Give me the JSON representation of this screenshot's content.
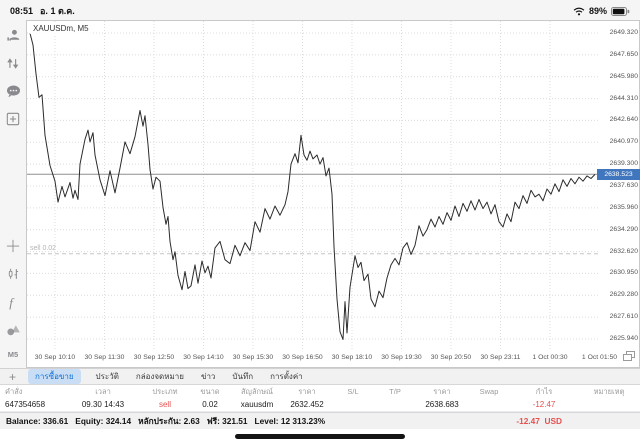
{
  "status_bar": {
    "time": "08:51",
    "date": "อ. 1 ต.ค.",
    "battery_percent": "89%"
  },
  "sidebar": {
    "icons": [
      "accounts-icon",
      "trade-icon",
      "chat-icon",
      "new-chart-icon",
      "crosshair-icon",
      "chart-type-icon",
      "indicators-icon",
      "objects-icon"
    ],
    "timeframe_label": "M5"
  },
  "chart_data": {
    "type": "line",
    "title": "XAUUSDm, M5",
    "symbol": "XAUUSDm",
    "timeframe": "M5",
    "x_ticks": [
      "30 Sep 10:10",
      "30 Sep 11:30",
      "30 Sep 12:50",
      "30 Sep 14:10",
      "30 Sep 15:30",
      "30 Sep 16:50",
      "30 Sep 18:10",
      "30 Sep 19:30",
      "30 Sep 20:50",
      "30 Sep 23:11",
      "1 Oct 00:30",
      "1 Oct 01:50"
    ],
    "y_ticks": [
      "2649.320",
      "2647.650",
      "2645.980",
      "2644.310",
      "2642.640",
      "2640.970",
      "2639.300",
      "2637.630",
      "2635.960",
      "2634.290",
      "2632.620",
      "2630.950",
      "2629.280",
      "2627.610",
      "2625.940"
    ],
    "y_axis": {
      "top_price": 2649.32,
      "bottom_price": 2625.94,
      "tick_step": 1.67
    },
    "grid": true,
    "current_price": "2638.523",
    "position_line": {
      "label": "sell 0.02",
      "price": 2632.452
    },
    "x_note": "x = px from plot left edge; gridline spacing 49.5px = 80 min; x=28 is 30 Sep 10:10",
    "series": [
      {
        "name": "XAUUSDm M5",
        "points": [
          [
            3,
            2649.3
          ],
          [
            6,
            2648.4
          ],
          [
            9,
            2646.2
          ],
          [
            12,
            2644.4
          ],
          [
            15,
            2644.6
          ],
          [
            18,
            2641.5
          ],
          [
            23,
            2639.2
          ],
          [
            28,
            2638.0
          ],
          [
            31,
            2636.4
          ],
          [
            35,
            2637.6
          ],
          [
            38,
            2636.8
          ],
          [
            43,
            2637.9
          ],
          [
            46,
            2636.7
          ],
          [
            48,
            2637.3
          ],
          [
            51,
            2636.6
          ],
          [
            53,
            2639.3
          ],
          [
            58,
            2641.2
          ],
          [
            61,
            2641.9
          ],
          [
            63,
            2641.0
          ],
          [
            66,
            2641.7
          ],
          [
            68,
            2640.0
          ],
          [
            73,
            2638.1
          ],
          [
            78,
            2636.9
          ],
          [
            83,
            2638.8
          ],
          [
            88,
            2637.1
          ],
          [
            93,
            2639.0
          ],
          [
            98,
            2641.0
          ],
          [
            103,
            2640.1
          ],
          [
            108,
            2641.4
          ],
          [
            113,
            2643.4
          ],
          [
            116,
            2642.2
          ],
          [
            118,
            2643.0
          ],
          [
            121,
            2640.8
          ],
          [
            123,
            2638.9
          ],
          [
            126,
            2637.4
          ],
          [
            129,
            2638.3
          ],
          [
            133,
            2638.0
          ],
          [
            136,
            2636.0
          ],
          [
            139,
            2634.7
          ],
          [
            141,
            2635.3
          ],
          [
            143,
            2633.4
          ],
          [
            146,
            2632.0
          ],
          [
            148,
            2632.6
          ],
          [
            151,
            2630.8
          ],
          [
            155,
            2629.7
          ],
          [
            158,
            2631.1
          ],
          [
            161,
            2629.8
          ],
          [
            164,
            2630.0
          ],
          [
            168,
            2631.6
          ],
          [
            171,
            2630.2
          ],
          [
            175,
            2631.9
          ],
          [
            178,
            2631.0
          ],
          [
            181,
            2631.5
          ],
          [
            184,
            2630.6
          ],
          [
            188,
            2632.9
          ],
          [
            193,
            2633.4
          ],
          [
            198,
            2632.0
          ],
          [
            203,
            2631.7
          ],
          [
            208,
            2633.1
          ],
          [
            213,
            2632.3
          ],
          [
            218,
            2633.3
          ],
          [
            223,
            2632.7
          ],
          [
            228,
            2634.9
          ],
          [
            233,
            2634.1
          ],
          [
            238,
            2635.9
          ],
          [
            243,
            2635.1
          ],
          [
            248,
            2636.1
          ],
          [
            253,
            2635.4
          ],
          [
            258,
            2636.2
          ],
          [
            261,
            2637.2
          ],
          [
            264,
            2639.3
          ],
          [
            268,
            2640.1
          ],
          [
            271,
            2639.4
          ],
          [
            274,
            2641.5
          ],
          [
            277,
            2640.0
          ],
          [
            280,
            2639.6
          ],
          [
            283,
            2640.3
          ],
          [
            286,
            2639.7
          ],
          [
            290,
            2640.0
          ],
          [
            293,
            2639.3
          ],
          [
            296,
            2639.8
          ],
          [
            299,
            2638.4
          ],
          [
            302,
            2639.0
          ],
          [
            305,
            2637.0
          ],
          [
            307,
            2633.0
          ],
          [
            310,
            2629.0
          ],
          [
            313,
            2626.5
          ],
          [
            316,
            2625.9
          ],
          [
            318,
            2628.8
          ],
          [
            320,
            2626.4
          ],
          [
            323,
            2629.9
          ],
          [
            328,
            2632.3
          ],
          [
            331,
            2631.4
          ],
          [
            334,
            2631.8
          ],
          [
            337,
            2630.4
          ],
          [
            341,
            2630.9
          ],
          [
            344,
            2629.0
          ],
          [
            348,
            2628.4
          ],
          [
            352,
            2629.6
          ],
          [
            356,
            2629.1
          ],
          [
            360,
            2630.6
          ],
          [
            364,
            2631.6
          ],
          [
            368,
            2632.1
          ],
          [
            372,
            2631.6
          ],
          [
            376,
            2632.9
          ],
          [
            380,
            2633.3
          ],
          [
            384,
            2632.4
          ],
          [
            388,
            2633.1
          ],
          [
            392,
            2634.6
          ],
          [
            396,
            2633.8
          ],
          [
            400,
            2634.3
          ],
          [
            404,
            2635.1
          ],
          [
            408,
            2634.5
          ],
          [
            412,
            2635.3
          ],
          [
            416,
            2634.7
          ],
          [
            420,
            2635.6
          ],
          [
            424,
            2635.0
          ],
          [
            428,
            2636.1
          ],
          [
            432,
            2635.3
          ],
          [
            436,
            2636.3
          ],
          [
            440,
            2635.7
          ],
          [
            444,
            2636.5
          ],
          [
            448,
            2635.8
          ],
          [
            452,
            2636.6
          ],
          [
            456,
            2635.9
          ],
          [
            460,
            2636.4
          ],
          [
            464,
            2635.5
          ],
          [
            468,
            2636.2
          ],
          [
            472,
            2634.9
          ],
          [
            476,
            2634.5
          ],
          [
            480,
            2635.5
          ],
          [
            484,
            2634.9
          ],
          [
            488,
            2636.4
          ],
          [
            492,
            2635.9
          ],
          [
            496,
            2636.9
          ],
          [
            500,
            2636.3
          ],
          [
            504,
            2637.3
          ],
          [
            508,
            2636.8
          ],
          [
            512,
            2637.0
          ],
          [
            516,
            2636.5
          ],
          [
            520,
            2637.4
          ],
          [
            524,
            2637.0
          ],
          [
            528,
            2637.8
          ],
          [
            532,
            2637.2
          ],
          [
            536,
            2638.1
          ],
          [
            540,
            2637.6
          ],
          [
            544,
            2638.2
          ],
          [
            548,
            2637.8
          ],
          [
            552,
            2638.3
          ],
          [
            556,
            2638.0
          ],
          [
            560,
            2638.4
          ],
          [
            564,
            2638.2
          ],
          [
            568,
            2638.52
          ]
        ]
      }
    ]
  },
  "tab_bar": {
    "add_button": "+",
    "selected_index": 0,
    "tabs": [
      "การซื้อขาย",
      "ประวัติ",
      "กล่องจดหมาย",
      "ข่าว",
      "บันทึก",
      "การตั้งค่า"
    ]
  },
  "orders_table": {
    "headers": [
      "คำสั่ง",
      "เวลา",
      "ประเภท",
      "ขนาด",
      "สัญลักษณ์",
      "ราคา",
      "S/L",
      "T/P",
      "ราคา",
      "Swap",
      "กำไร",
      "หมายเหตุ"
    ],
    "rows": [
      [
        "647354658",
        "09.30 14:43",
        "sell",
        "0.02",
        "xauusdm",
        "2632.452",
        "",
        "",
        "2638.683",
        "",
        "-12.47",
        ""
      ]
    ]
  },
  "bottom_bar": {
    "items": [
      {
        "label": "Balance:",
        "value": "336.61"
      },
      {
        "label": "Equity:",
        "value": "324.14"
      },
      {
        "label": "หลักประกัน:",
        "value": "2.63"
      },
      {
        "label": "ฟรี:",
        "value": "321.51"
      },
      {
        "label": "Level:",
        "value": "12 313.23%"
      }
    ],
    "profit": "-12.47",
    "currency": "USD"
  }
}
